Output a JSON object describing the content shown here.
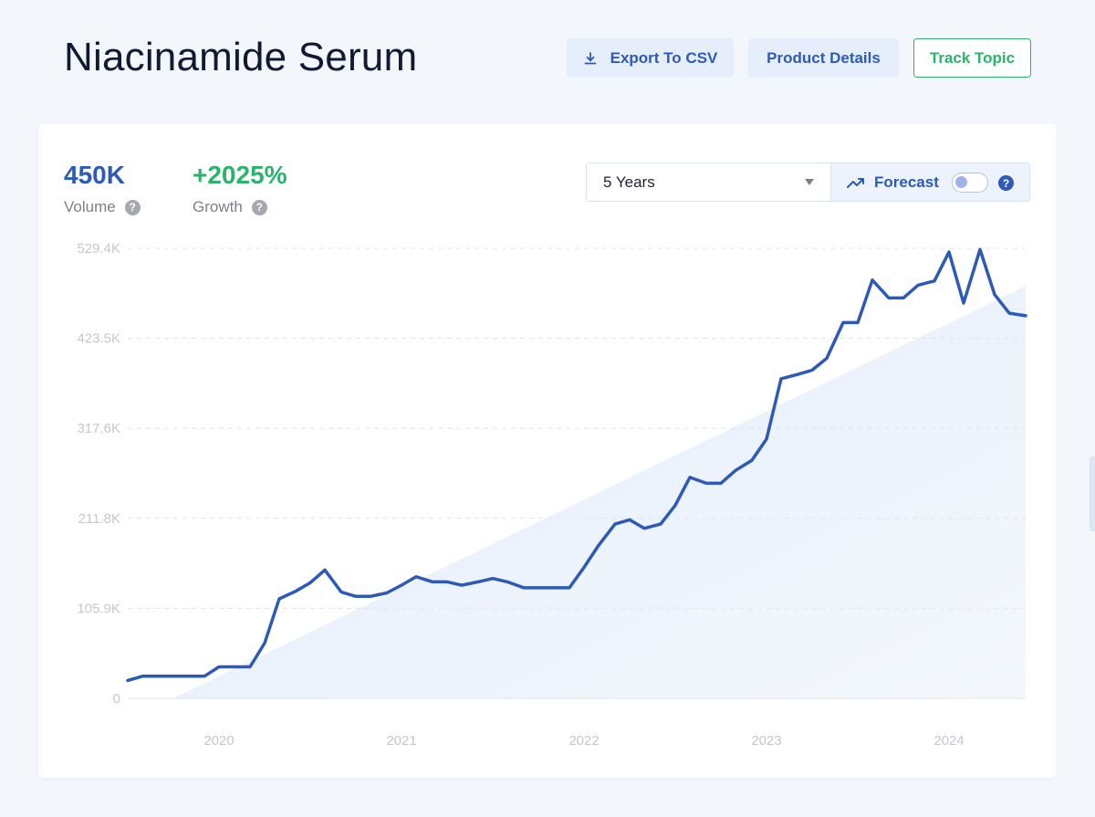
{
  "page": {
    "title": "Niacinamide Serum"
  },
  "toolbar": {
    "export_label": "Export To CSV",
    "details_label": "Product Details",
    "track_label": "Track Topic"
  },
  "stats": {
    "volume_value": "450K",
    "volume_label": "Volume",
    "growth_value": "+2025%",
    "growth_label": "Growth",
    "help_glyph": "?"
  },
  "controls": {
    "range_selected": "5 Years",
    "forecast_label": "Forecast",
    "forecast_enabled": false
  },
  "colors": {
    "line": "#2d5ab8",
    "growth": "#2bb36b",
    "trend_fill": "#e3edfa"
  },
  "chart_data": {
    "type": "line",
    "series": [
      {
        "values": [
          [
            2019.5,
            21000
          ],
          [
            2019.58,
            26000
          ],
          [
            2019.67,
            26000
          ],
          [
            2019.75,
            26000
          ],
          [
            2019.83,
            26000
          ],
          [
            2019.92,
            26000
          ],
          [
            2020.0,
            37000
          ],
          [
            2020.08,
            37000
          ],
          [
            2020.17,
            37000
          ],
          [
            2020.25,
            65000
          ],
          [
            2020.33,
            117000
          ],
          [
            2020.42,
            126000
          ],
          [
            2020.5,
            136000
          ],
          [
            2020.58,
            151000
          ],
          [
            2020.67,
            125000
          ],
          [
            2020.75,
            120000
          ],
          [
            2020.83,
            120000
          ],
          [
            2020.92,
            124000
          ],
          [
            2021.0,
            133000
          ],
          [
            2021.08,
            143000
          ],
          [
            2021.17,
            137000
          ],
          [
            2021.25,
            137000
          ],
          [
            2021.33,
            133000
          ],
          [
            2021.42,
            137000
          ],
          [
            2021.5,
            141000
          ],
          [
            2021.58,
            137000
          ],
          [
            2021.67,
            130000
          ],
          [
            2021.75,
            130000
          ],
          [
            2021.83,
            130000
          ],
          [
            2021.92,
            130000
          ],
          [
            2022.0,
            154000
          ],
          [
            2022.08,
            180000
          ],
          [
            2022.17,
            205000
          ],
          [
            2022.25,
            210000
          ],
          [
            2022.33,
            200000
          ],
          [
            2022.42,
            205000
          ],
          [
            2022.5,
            227000
          ],
          [
            2022.58,
            260000
          ],
          [
            2022.67,
            253000
          ],
          [
            2022.75,
            253000
          ],
          [
            2022.83,
            268000
          ],
          [
            2022.92,
            280000
          ],
          [
            2023.0,
            305000
          ],
          [
            2023.08,
            376000
          ],
          [
            2023.17,
            381000
          ],
          [
            2023.25,
            386000
          ],
          [
            2023.33,
            400000
          ],
          [
            2023.42,
            442000
          ],
          [
            2023.5,
            442000
          ],
          [
            2023.58,
            492000
          ],
          [
            2023.67,
            471000
          ],
          [
            2023.75,
            471000
          ],
          [
            2023.83,
            486000
          ],
          [
            2023.92,
            491000
          ],
          [
            2024.0,
            525000
          ],
          [
            2024.08,
            465000
          ],
          [
            2024.17,
            528000
          ],
          [
            2024.25,
            475000
          ],
          [
            2024.33,
            453000
          ],
          [
            2024.42,
            450000
          ]
        ]
      }
    ],
    "trend_area": [
      [
        2019.75,
        0
      ],
      [
        2024.42,
        485000
      ]
    ],
    "y_ticks": [
      "529.4K",
      "423.5K",
      "317.6K",
      "211.8K",
      "105.9K",
      "0"
    ],
    "y_tick_values": [
      529400,
      423500,
      317600,
      211800,
      105900,
      0
    ],
    "x_ticks": [
      "2020",
      "2021",
      "2022",
      "2023",
      "2024"
    ],
    "x_tick_values": [
      2020,
      2021,
      2022,
      2023,
      2024
    ],
    "xlim": [
      2019.5,
      2024.42
    ],
    "ylim": [
      0,
      529400
    ],
    "grid": true,
    "xlabel": "",
    "ylabel": ""
  }
}
